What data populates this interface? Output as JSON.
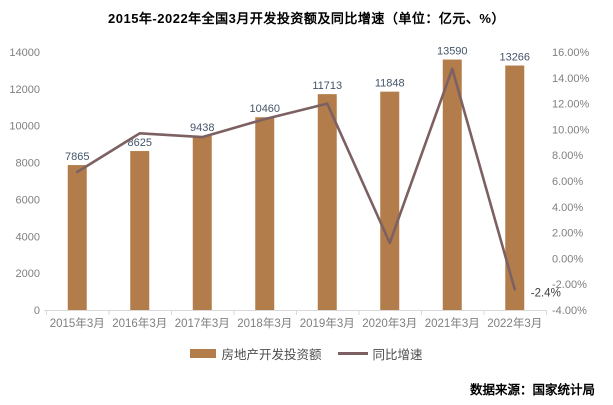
{
  "title": "2015年-2022年全国3月开发投资额及同比增速（单位：亿元、%）",
  "source": "数据来源：国家统计局",
  "legend": {
    "bar_label": "房地产开发投资额",
    "line_label": "同比增速"
  },
  "colors": {
    "bar": "#B27D4A",
    "line": "#7D6162",
    "axis_text": "#7F7F7F",
    "value_label": "#44546A",
    "annotation_text": "#404040",
    "axis_line": "#D9D9D9",
    "legend_text": "#4D4D4D",
    "title_text": "#000000",
    "background": "#FFFFFF"
  },
  "chart_data": {
    "type": "bar",
    "subtype": "bar-line-combo",
    "title": "2015年-2022年全国3月开发投资额及同比增速（单位：亿元、%）",
    "categories": [
      "2015年3月",
      "2016年3月",
      "2017年3月",
      "2018年3月",
      "2019年3月",
      "2020年3月",
      "2021年3月",
      "2022年3月"
    ],
    "series": [
      {
        "name": "房地产开发投资额",
        "type": "bar",
        "axis": "left",
        "unit": "亿元",
        "values": [
          7865,
          8625,
          9438,
          10460,
          11713,
          11848,
          13590,
          13266
        ],
        "labels": [
          "7865",
          "8625",
          "9438",
          "10460",
          "11713",
          "11848",
          "13590",
          "13266"
        ]
      },
      {
        "name": "同比增速",
        "type": "line",
        "axis": "right",
        "unit": "%",
        "values": [
          6.7,
          9.7,
          9.4,
          10.8,
          12.0,
          1.2,
          14.7,
          -2.4
        ]
      }
    ],
    "left_axis": {
      "min": 0,
      "max": 14000,
      "step": 2000,
      "tick_labels": [
        "0",
        "2000",
        "4000",
        "6000",
        "8000",
        "10000",
        "12000",
        "14000"
      ]
    },
    "right_axis": {
      "min": -4,
      "max": 16,
      "step": 2,
      "tick_labels": [
        "-4.00%",
        "-2.00%",
        "0.00%",
        "2.00%",
        "4.00%",
        "6.00%",
        "8.00%",
        "10.00%",
        "12.00%",
        "14.00%",
        "16.00%"
      ]
    },
    "annotations": [
      {
        "text": "-2.4%",
        "series": "同比增速",
        "category": "2022年3月"
      }
    ],
    "grid": false,
    "legend_position": "bottom"
  }
}
